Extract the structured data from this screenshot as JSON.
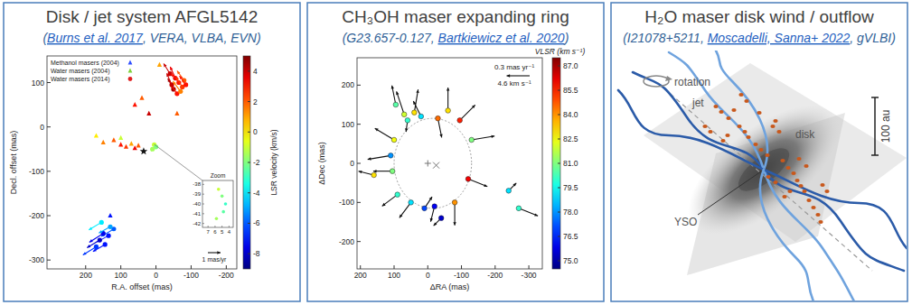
{
  "panels": [
    {
      "title": "Disk / jet system AFGL5142",
      "subtitle": {
        "before": "(",
        "link": "Burns et al. 2017",
        "after": ", VERA, VLBA, EVN)"
      }
    },
    {
      "title": "CH₃OH maser expanding ring",
      "subtitle": {
        "before": "(G23.657-0.127, ",
        "link": "Bartkiewicz et al. 2020",
        "after": ")"
      }
    },
    {
      "title": "H₂O maser disk wind / outflow",
      "subtitle": {
        "before": "(I21078+5211, ",
        "link": "Moscadelli, Sanna+ 2022",
        "after": ", gVLBI)"
      }
    }
  ],
  "chart_data": [
    {
      "type": "scatter",
      "x_label": "R.A. offset (mas)",
      "y_label": "Decl. offset (mas)",
      "xlim": [
        310,
        -230
      ],
      "ylim": [
        -320,
        160
      ],
      "xticks": [
        200,
        100,
        0,
        -100,
        -200
      ],
      "yticks": [
        100,
        0,
        -100,
        -200,
        -300
      ],
      "legend": "upper left",
      "colorbar": {
        "label": "LSR velocity (km/s)",
        "range": [
          -9,
          5
        ],
        "ticks": [
          4,
          2,
          0,
          -2,
          -4,
          -6,
          -8
        ]
      },
      "series": [
        {
          "name": "Methanol masers (2004)",
          "marker": "triangle",
          "color": "#2f4fff",
          "x": [
            150,
            120,
            100,
            85,
            70,
            60,
            50
          ],
          "values": [
            -35,
            -30,
            -40,
            -45,
            -38,
            -48,
            -42
          ],
          "velocity": [
            1.5,
            2,
            3,
            2.5,
            1,
            3.5,
            2
          ]
        },
        {
          "name": "Water masers (2004)",
          "marker": "triangle",
          "color": "#7fd13b",
          "x": [
            60,
            40,
            20,
            -10,
            130,
            100,
            -60,
            170
          ],
          "values": [
            50,
            65,
            30,
            140,
            -200,
            -25,
            30,
            -20
          ],
          "velocity": [
            3,
            2,
            4,
            1,
            -7,
            -1,
            2,
            0
          ]
        },
        {
          "name": "Water masers (2014)",
          "marker": "circle",
          "color": "#e02020",
          "x": [
            -40,
            -55,
            -65,
            -75,
            -50,
            -80,
            -60,
            -45,
            -70,
            -85,
            120,
            135,
            150,
            160,
            145,
            170,
            130,
            155,
            5,
            0,
            10
          ],
          "values": [
            120,
            110,
            100,
            90,
            85,
            105,
            75,
            95,
            80,
            95,
            -230,
            -245,
            -240,
            -255,
            -265,
            -270,
            -225,
            -215,
            -40,
            -45,
            -50
          ],
          "velocity": [
            4,
            3.5,
            3,
            2.5,
            4.5,
            2,
            3,
            4,
            1.5,
            3,
            -6,
            -7,
            -7.5,
            -8,
            -7,
            -6.5,
            -5,
            -4,
            -1,
            -2,
            -1.5
          ],
          "motion_x": [
            0.5,
            0.4,
            0.6,
            0.5,
            0.45,
            0.55,
            0.5,
            0.4,
            0.6,
            0.5,
            1.0,
            0.9,
            1.1,
            1.0,
            0.95,
            1.05,
            0.9,
            1.0,
            0.1,
            0.15,
            0.1
          ],
          "motion_y": [
            0.8,
            0.9,
            0.7,
            0.8,
            0.85,
            0.75,
            0.7,
            0.9,
            0.8,
            0.7,
            -0.6,
            -0.5,
            -0.7,
            -0.6,
            -0.55,
            -0.65,
            -0.5,
            -0.6,
            -0.1,
            0.1,
            -0.15
          ]
        }
      ],
      "source": {
        "marker": "star",
        "x": 35,
        "y": -55
      },
      "arrow_scale": {
        "value": 1,
        "label": "1 mas/yr"
      },
      "inset": {
        "title": "Zoom",
        "xlim": [
          7.8,
          3.4
        ],
        "ylim": [
          -42.4,
          -37.6
        ],
        "xticks": [
          7,
          6,
          5,
          4
        ],
        "yticks": [
          -38,
          -39,
          -40,
          -41,
          -42
        ],
        "x": [
          5.5,
          5.0,
          4.5,
          4.8,
          5.8
        ],
        "values": [
          -38.5,
          -39.2,
          -40.0,
          -40.8,
          -41.5
        ],
        "velocity": [
          -1,
          -2,
          -3,
          -2.5,
          -1.5
        ]
      }
    },
    {
      "type": "scatter",
      "x_label": "ΔRA (mas)",
      "y_label": "ΔDec (mas)",
      "xlim": [
        210,
        -340
      ],
      "ylim": [
        -270,
        270
      ],
      "xticks": [
        200,
        100,
        0,
        -100,
        -200,
        -300
      ],
      "yticks": [
        200,
        100,
        0,
        -100,
        -200
      ],
      "colorbar": {
        "label": "VLSR (km s⁻¹)",
        "range": [
          74.5,
          87.5
        ],
        "ticks": [
          {
            "value": 87,
            "label": "87.0"
          },
          85.5,
          {
            "value": 84,
            "label": "84.0"
          },
          82.5,
          {
            "value": 81,
            "label": "81.0"
          },
          79.5,
          {
            "value": 78,
            "label": "78.0"
          },
          76.5,
          {
            "value": 75,
            "label": "75.0"
          }
        ]
      },
      "series": [
        {
          "marker": "circle",
          "x": [
            95,
            70,
            60,
            40,
            20,
            -30,
            -60,
            -95,
            -130,
            -120,
            -80,
            -20,
            10,
            50,
            90,
            105,
            110,
            100,
            160,
            -40,
            -270,
            -240
          ],
          "values": [
            150,
            125,
            110,
            130,
            120,
            115,
            135,
            110,
            60,
            -40,
            -100,
            -110,
            -115,
            -100,
            -80,
            -20,
            20,
            60,
            -30,
            -140,
            -115,
            -70
          ],
          "velocity": [
            80.5,
            82,
            80,
            83,
            79,
            84.5,
            83,
            85.5,
            81,
            86,
            84,
            76,
            77,
            79,
            80,
            81,
            78,
            82.5,
            83,
            75.5,
            80,
            79
          ],
          "motion_x": [
            0.05,
            0.1,
            0.02,
            -0.05,
            0.1,
            -0.05,
            0,
            -0.2,
            -0.3,
            -0.25,
            0,
            0.05,
            -0.1,
            0.15,
            0.2,
            0.25,
            0.3,
            0.25,
            0.2,
            0.1,
            -0.25,
            -0.1
          ],
          "motion_y": [
            0.25,
            0.3,
            -0.15,
            0.3,
            0.2,
            -0.25,
            0.3,
            0.2,
            0.05,
            -0.1,
            -0.3,
            -0.2,
            0.15,
            -0.2,
            -0.15,
            0,
            -0.05,
            0.15,
            0.05,
            -0.1,
            -0.1,
            0.1
          ]
        }
      ],
      "ring": {
        "x": -15,
        "y": 0,
        "radius": 115
      },
      "markers": [
        {
          "marker": "plus",
          "x": 0,
          "y": 0
        },
        {
          "marker": "x",
          "x": -25,
          "y": -5
        }
      ],
      "arrow_scale": {
        "value": 0.3,
        "label": "0.3 mas yr⁻¹",
        "velocity_label": "4.6 km s⁻¹"
      }
    }
  ],
  "diagram": {
    "labels": [
      "rotation",
      "jet",
      "disk",
      "YSO",
      "100 au"
    ]
  }
}
